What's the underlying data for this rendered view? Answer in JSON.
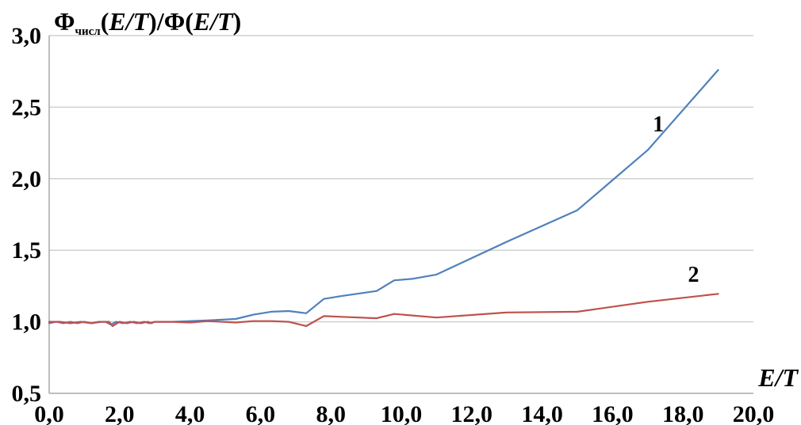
{
  "chart_data": {
    "type": "line",
    "ylabel": {
      "main": "Φ",
      "subscript": "числ",
      "rest_1": "(",
      "rest_italic_1": "E/T",
      "rest_2": ")/Φ(",
      "rest_italic_2": "E/T",
      "rest_3": ")"
    },
    "xlabel": "E/T",
    "xlim": [
      0,
      20
    ],
    "ylim": [
      0.5,
      3.0
    ],
    "x_ticks": [
      "0,0",
      "2,0",
      "4,0",
      "6,0",
      "8,0",
      "10,0",
      "12,0",
      "14,0",
      "16,0",
      "18,0",
      "20,0"
    ],
    "y_ticks": [
      "0,5",
      "1,0",
      "1,5",
      "2,0",
      "2,5",
      "3,0"
    ],
    "grid": "horizontal",
    "series": [
      {
        "name": "1",
        "color": "#4f81bd",
        "points": [
          [
            0.0,
            0.99
          ],
          [
            0.2,
            1.0
          ],
          [
            0.4,
            0.99
          ],
          [
            0.6,
            1.0
          ],
          [
            0.8,
            0.99
          ],
          [
            1.0,
            1.0
          ],
          [
            1.2,
            0.99
          ],
          [
            1.4,
            1.0
          ],
          [
            1.6,
            1.0
          ],
          [
            1.75,
            0.98
          ],
          [
            1.9,
            1.0
          ],
          [
            2.1,
            0.99
          ],
          [
            2.3,
            1.0
          ],
          [
            2.5,
            0.99
          ],
          [
            2.7,
            1.0
          ],
          [
            2.85,
            0.99
          ],
          [
            3.0,
            1.0
          ],
          [
            3.5,
            1.0
          ],
          [
            4.0,
            1.005
          ],
          [
            4.5,
            1.01
          ],
          [
            5.3,
            1.02
          ],
          [
            5.8,
            1.05
          ],
          [
            6.3,
            1.07
          ],
          [
            6.8,
            1.075
          ],
          [
            7.3,
            1.06
          ],
          [
            7.8,
            1.16
          ],
          [
            8.3,
            1.18
          ],
          [
            9.3,
            1.215
          ],
          [
            9.8,
            1.29
          ],
          [
            10.3,
            1.3
          ],
          [
            11.0,
            1.33
          ],
          [
            13.0,
            1.56
          ],
          [
            15.0,
            1.78
          ],
          [
            17.0,
            2.2
          ],
          [
            19.0,
            2.76
          ]
        ]
      },
      {
        "name": "2",
        "color": "#c0504d",
        "points": [
          [
            0.0,
            1.0
          ],
          [
            0.3,
            1.0
          ],
          [
            0.6,
            0.99
          ],
          [
            0.9,
            1.0
          ],
          [
            1.2,
            0.99
          ],
          [
            1.5,
            1.0
          ],
          [
            1.7,
            1.0
          ],
          [
            1.8,
            0.97
          ],
          [
            2.0,
            1.0
          ],
          [
            2.2,
            0.99
          ],
          [
            2.4,
            1.0
          ],
          [
            2.6,
            0.99
          ],
          [
            2.8,
            1.0
          ],
          [
            2.9,
            0.99
          ],
          [
            3.0,
            1.0
          ],
          [
            3.5,
            1.0
          ],
          [
            4.0,
            0.995
          ],
          [
            4.5,
            1.005
          ],
          [
            5.3,
            0.995
          ],
          [
            5.8,
            1.005
          ],
          [
            6.3,
            1.005
          ],
          [
            6.8,
            1.0
          ],
          [
            7.3,
            0.97
          ],
          [
            7.8,
            1.04
          ],
          [
            8.3,
            1.035
          ],
          [
            9.3,
            1.025
          ],
          [
            9.8,
            1.055
          ],
          [
            11.0,
            1.03
          ],
          [
            13.0,
            1.065
          ],
          [
            15.0,
            1.07
          ],
          [
            17.0,
            1.14
          ],
          [
            19.0,
            1.195
          ]
        ]
      }
    ],
    "series_label_positions": {
      "1": [
        17.3,
        2.33
      ],
      "2": [
        18.3,
        1.28
      ]
    }
  }
}
